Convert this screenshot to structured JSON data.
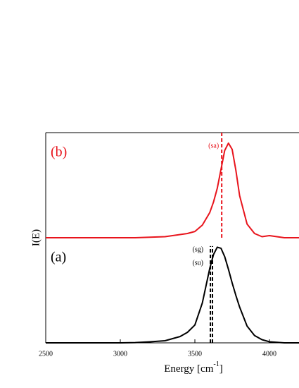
{
  "chart_data": {
    "type": "line",
    "ylabel": "I(E)",
    "xlabel": [
      "Energy [cm",
      "-1",
      "]"
    ],
    "xlim": [
      2500,
      4200
    ],
    "xticks": [
      2500,
      3000,
      3500,
      4000
    ],
    "ylim": [
      0,
      2
    ],
    "x": [
      2500,
      2600,
      2700,
      2800,
      2900,
      3000,
      3100,
      3200,
      3300,
      3400,
      3450,
      3500,
      3550,
      3600,
      3625,
      3650,
      3675,
      3700,
      3725,
      3750,
      3775,
      3800,
      3850,
      3900,
      3950,
      4000,
      4050,
      4100,
      4200
    ],
    "series": [
      {
        "name": "(a)",
        "color": "#000000",
        "values": [
          0,
          0,
          0,
          0,
          0,
          0,
          0.003,
          0.01,
          0.02,
          0.06,
          0.1,
          0.17,
          0.38,
          0.71,
          0.84,
          0.91,
          0.9,
          0.82,
          0.7,
          0.57,
          0.45,
          0.34,
          0.16,
          0.07,
          0.03,
          0.01,
          0.005,
          0,
          0
        ]
      },
      {
        "name": "(b)",
        "color": "#e8141c",
        "values": [
          1.0,
          1.0,
          1.0,
          1.0,
          1.0,
          1.0,
          1.0,
          1.005,
          1.01,
          1.03,
          1.04,
          1.06,
          1.12,
          1.24,
          1.34,
          1.47,
          1.65,
          1.83,
          1.9,
          1.84,
          1.64,
          1.4,
          1.13,
          1.04,
          1.01,
          1.02,
          1.01,
          1.0,
          1.0
        ]
      }
    ],
    "vlines": [
      {
        "label": "(sg)",
        "x": 3604,
        "ymin": 0,
        "ymax": 0.92,
        "color": "#000000"
      },
      {
        "label": "(su)",
        "x": 3618,
        "ymin": 0,
        "ymax": 0.92,
        "color": "#000000"
      },
      {
        "label": "(sa)",
        "x": 3680,
        "ymin": 1.0,
        "ymax": 2.0,
        "color": "#e8141c"
      }
    ]
  }
}
